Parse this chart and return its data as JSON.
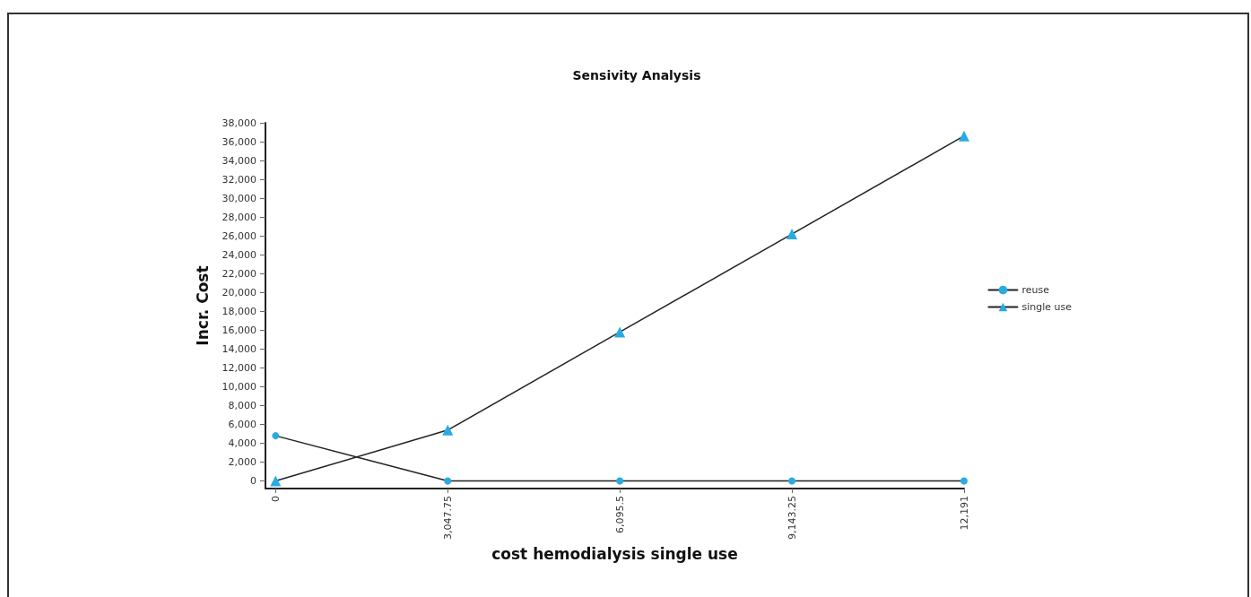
{
  "chart_data": {
    "type": "line",
    "title": "Sensivity Analysis",
    "xlabel": "cost hemodialysis single use",
    "ylabel": "Incr. Cost",
    "x": [
      0,
      3047.75,
      6095.5,
      9143.25,
      12191
    ],
    "series": [
      {
        "name": "reuse",
        "color": "#29abe2",
        "marker": "circle",
        "values": [
          4800,
          0,
          0,
          0,
          0
        ]
      },
      {
        "name": "single use",
        "color": "#29abe2",
        "marker": "triangle",
        "values": [
          0,
          5400,
          15800,
          26200,
          36600
        ]
      }
    ],
    "xlim": [
      -180,
      12191
    ],
    "xticks": [
      0,
      {
        "value": 3047.75,
        "label": "3,047.75"
      },
      {
        "value": 6095.5,
        "label": "6,095.5"
      },
      {
        "value": 9143.25,
        "label": "9,143.25"
      },
      {
        "value": 12191,
        "label": "12,191"
      }
    ],
    "ylim": [
      -800,
      38000
    ],
    "yticks": [
      0,
      {
        "value": 2000,
        "label": "2,000"
      },
      {
        "value": 4000,
        "label": "4,000"
      },
      {
        "value": 6000,
        "label": "6,000"
      },
      {
        "value": 8000,
        "label": "8,000"
      },
      {
        "value": 10000,
        "label": "10,000"
      },
      {
        "value": 12000,
        "label": "12,000"
      },
      {
        "value": 14000,
        "label": "14,000"
      },
      {
        "value": 16000,
        "label": "16,000"
      },
      {
        "value": 18000,
        "label": "18,000"
      },
      {
        "value": 20000,
        "label": "20,000"
      },
      {
        "value": 22000,
        "label": "22,000"
      },
      {
        "value": 24000,
        "label": "24,000"
      },
      {
        "value": 26000,
        "label": "26,000"
      },
      {
        "value": 28000,
        "label": "28,000"
      },
      {
        "value": 30000,
        "label": "30,000"
      },
      {
        "value": 32000,
        "label": "32,000"
      },
      {
        "value": 34000,
        "label": "34,000"
      },
      {
        "value": 36000,
        "label": "36,000"
      },
      {
        "value": 38000,
        "label": "38,000"
      }
    ],
    "grid": false,
    "legend": "right",
    "line_style": "solid"
  }
}
